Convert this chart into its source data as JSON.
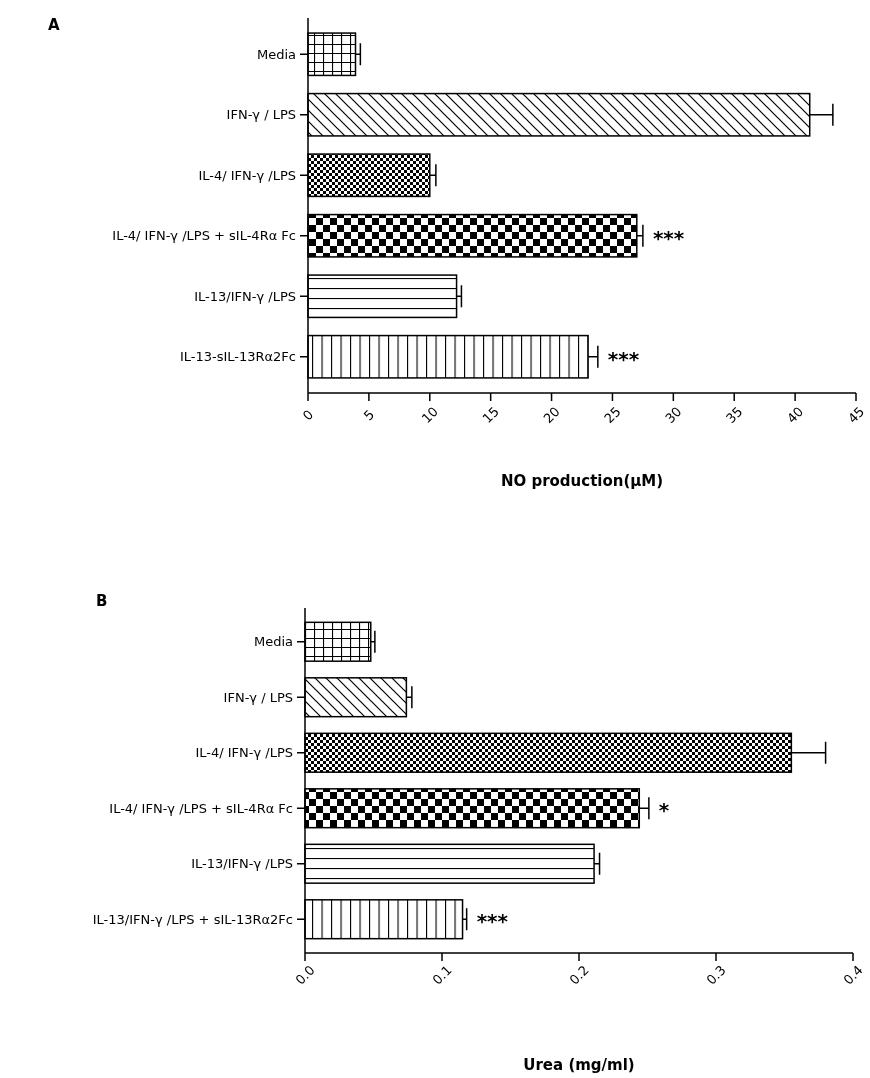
{
  "chart_data": [
    {
      "type": "bar",
      "orientation": "horizontal",
      "title": "A",
      "xlabel": "NO production(μM)",
      "categories": [
        "Media",
        "IFN-γ / LPS",
        "IL-4/ IFN-γ /LPS",
        "IL-4/ IFN-γ /LPS + sIL-4Rα Fc",
        "IL-13/IFN-γ /LPS",
        "IL-13-sIL-13Rα2Fc"
      ],
      "values": [
        3.9,
        41.2,
        10.0,
        27.0,
        12.2,
        23.0
      ],
      "errors": [
        0.4,
        1.9,
        0.5,
        0.5,
        0.4,
        0.8
      ],
      "colors": [
        "#000000",
        "#000000",
        "#000000",
        "#000000",
        "#000000",
        "#000000"
      ],
      "xlim": [
        0,
        45
      ],
      "xticks": [
        0,
        5,
        10,
        15,
        20,
        25,
        30,
        35,
        40,
        45
      ],
      "annotations": [
        {
          "text": "***",
          "x": 27.5,
          "y": "IL-4/ IFN-γ /LPS + sIL-4Rα Fc"
        },
        {
          "text": "***",
          "x": 23.8,
          "y": "IL-13-sIL-13Rα2Fc"
        }
      ]
    },
    {
      "type": "bar",
      "orientation": "horizontal",
      "title": "B",
      "xlabel": "Urea (mg/ml)",
      "categories": [
        "Media",
        "IFN-γ / LPS",
        "IL-4/ IFN-γ /LPS",
        "IL-4/ IFN-γ /LPS + sIL-4Rα Fc",
        "IL-13/IFN-γ /LPS",
        "IL-13/IFN-γ /LPS + sIL-13Rα2Fc"
      ],
      "values": [
        0.048,
        0.074,
        0.355,
        0.244,
        0.211,
        0.115
      ],
      "errors": [
        0.003,
        0.004,
        0.025,
        0.007,
        0.004,
        0.003
      ],
      "colors": [
        "#000000",
        "#000000",
        "#000000",
        "#000000",
        "#000000",
        "#000000"
      ],
      "xlim": [
        0,
        0.4
      ],
      "xticks": [
        {
          "value": 0,
          "label": "0.0"
        },
        0.1,
        0.2,
        0.3,
        0.4
      ],
      "annotations": [
        {
          "text": "*",
          "x": 0.251,
          "y": "IL-4/ IFN-γ /LPS + sIL-4Rα Fc"
        },
        {
          "text": "***",
          "x": 0.118,
          "y": "IL-13/IFN-γ /LPS + sIL-13Rα2Fc"
        }
      ]
    }
  ]
}
